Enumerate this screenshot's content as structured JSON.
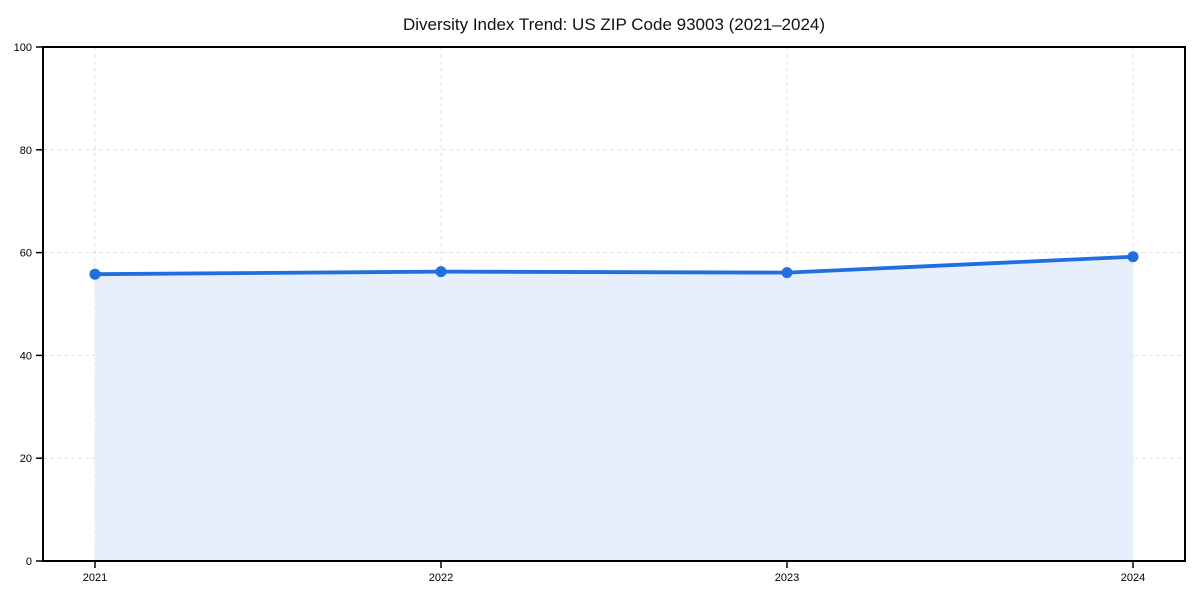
{
  "chart_data": {
    "type": "area",
    "title": "Diversity Index Trend: US ZIP Code 93003 (2021–2024)",
    "x": [
      2021,
      2022,
      2023,
      2024
    ],
    "xticks": [
      "2021",
      "2022",
      "2023",
      "2024"
    ],
    "series": [
      {
        "name": "Diversity Index",
        "values": [
          55.8,
          56.3,
          56.1,
          59.2
        ]
      }
    ],
    "xlabel": "",
    "ylabel": "",
    "ylim": [
      0,
      100
    ],
    "yticks": [
      0,
      20,
      40,
      60,
      80,
      100
    ],
    "grid": true,
    "grid_style": "dashed",
    "legend": "none",
    "line_color": "#1f6fe0",
    "fill_color": "#e7effc",
    "grid_color": "#e0e0e0",
    "axis_color": "#000000",
    "background_color": "#ffffff"
  }
}
